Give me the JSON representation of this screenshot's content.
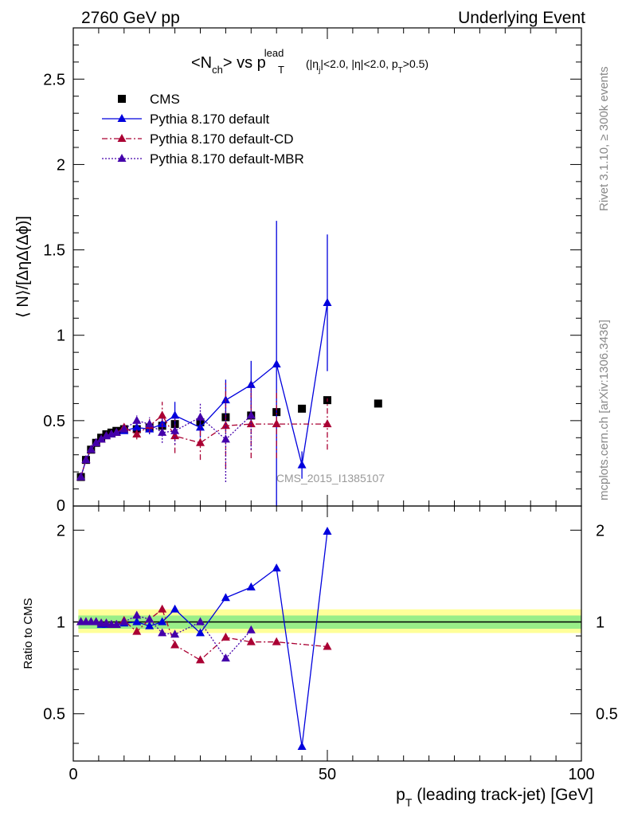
{
  "header": {
    "left": "2760 GeV pp",
    "right": "Underlying Event"
  },
  "side_labels": {
    "rivet": "Rivet 3.1.10, ≥ 300k events",
    "mcplots": "mcplots.cern.ch [arXiv:1306.3436]"
  },
  "watermark": "CMS_2015_I1385107",
  "title": {
    "main": "<N",
    "sub1": "ch",
    "mid": "> vs p",
    "sup": "lead",
    "sub2": "T",
    "cuts1": " (|η",
    "cuts1sub": "j",
    "cuts2": "|<2.0, |η|<2.0, p",
    "cuts2sub": "T",
    "cuts3": ">0.5)"
  },
  "axes": {
    "ylabel_top": "⟨ N⟩/[ΔηΔ(Δϕ)]",
    "ylabel_bottom": "Ratio to CMS",
    "xlabel_main": "p",
    "xlabel_sub": "T",
    "xlabel_rest": " (leading track-jet) [GeV]"
  },
  "legend": [
    {
      "name": "CMS",
      "color": "#000000",
      "marker": "square",
      "line": "none"
    },
    {
      "name": "Pythia 8.170 default",
      "color": "#0000dd",
      "marker": "triangle",
      "line": "solid"
    },
    {
      "name": "Pythia 8.170 default-CD",
      "color": "#aa0033",
      "marker": "triangle",
      "line": "dashdot"
    },
    {
      "name": "Pythia 8.170 default-MBR",
      "color": "#4400aa",
      "marker": "triangle",
      "line": "dotted"
    }
  ],
  "chart_data": [
    {
      "type": "scatter",
      "panel": "main",
      "xlim": [
        0,
        100
      ],
      "ylim": [
        0,
        2.8
      ],
      "x_ticks": [
        0,
        50,
        100
      ],
      "y_ticks": [
        "0.5",
        "1",
        "1.5",
        "2",
        "2.5"
      ],
      "series": [
        {
          "name": "CMS",
          "x": [
            1.5,
            2.5,
            3.5,
            4.5,
            5.5,
            6.5,
            7.5,
            8.5,
            10,
            12.5,
            15,
            17.5,
            20,
            25,
            30,
            35,
            40,
            45,
            50,
            60
          ],
          "y": [
            0.17,
            0.27,
            0.33,
            0.37,
            0.4,
            0.42,
            0.43,
            0.44,
            0.45,
            0.45,
            0.46,
            0.47,
            0.48,
            0.49,
            0.52,
            0.53,
            0.55,
            0.57,
            0.62,
            0.6
          ]
        },
        {
          "name": "Pythia 8.170 default",
          "x": [
            1.5,
            2.5,
            3.5,
            4.5,
            5.5,
            6.5,
            7.5,
            8.5,
            10,
            12.5,
            15,
            17.5,
            20,
            25,
            30,
            35,
            40,
            45,
            50,
            60
          ],
          "y": [
            0.17,
            0.27,
            0.33,
            0.37,
            0.39,
            0.41,
            0.42,
            0.43,
            0.44,
            0.46,
            0.45,
            0.48,
            0.53,
            0.46,
            0.62,
            0.71,
            0.83,
            0.24,
            1.19,
            null
          ],
          "err": [
            0.005,
            0.005,
            0.005,
            0.005,
            0.005,
            0.005,
            0.005,
            0.01,
            0.01,
            0.02,
            0.03,
            0.04,
            0.08,
            0.06,
            0.12,
            0.14,
            0.84,
            0.08,
            0.4,
            null
          ]
        },
        {
          "name": "Pythia 8.170 default-CD",
          "x": [
            1.5,
            2.5,
            3.5,
            4.5,
            5.5,
            6.5,
            7.5,
            8.5,
            10,
            12.5,
            15,
            17.5,
            20,
            25,
            30,
            35,
            40,
            45,
            50,
            60
          ],
          "y": [
            0.17,
            0.27,
            0.33,
            0.37,
            0.39,
            0.41,
            0.42,
            0.43,
            0.46,
            0.42,
            0.47,
            0.53,
            0.41,
            0.37,
            0.47,
            0.48,
            0.48,
            null,
            0.48,
            null
          ],
          "err": [
            0.005,
            0.005,
            0.005,
            0.005,
            0.005,
            0.005,
            0.005,
            0.01,
            0.02,
            0.03,
            0.04,
            0.08,
            0.1,
            0.1,
            0.25,
            0.2,
            0.2,
            null,
            0.15,
            null
          ]
        },
        {
          "name": "Pythia 8.170 default-MBR",
          "x": [
            1.5,
            2.5,
            3.5,
            4.5,
            5.5,
            6.5,
            7.5,
            8.5,
            10,
            12.5,
            15,
            17.5,
            20,
            25,
            30,
            35,
            40,
            45,
            50,
            60
          ],
          "y": [
            0.17,
            0.27,
            0.33,
            0.37,
            0.39,
            0.41,
            0.42,
            0.43,
            0.45,
            0.5,
            0.48,
            0.43,
            0.44,
            0.52,
            0.39,
            0.53,
            null,
            null,
            null,
            null
          ],
          "err": [
            0.005,
            0.005,
            0.005,
            0.005,
            0.005,
            0.005,
            0.005,
            0.01,
            0.02,
            0.03,
            0.04,
            0.06,
            0.08,
            0.08,
            0.25,
            0.2,
            null,
            null,
            null,
            null
          ]
        }
      ]
    },
    {
      "type": "scatter",
      "panel": "ratio",
      "xlim": [
        0,
        100
      ],
      "ylim": [
        0.35,
        2.4
      ],
      "y_ticks": [
        "0.5",
        "1",
        "2"
      ],
      "series": [
        {
          "name": "Pythia 8.170 default",
          "x": [
            1.5,
            2.5,
            3.5,
            4.5,
            5.5,
            6.5,
            7.5,
            8.5,
            10,
            12.5,
            15,
            17.5,
            20,
            25,
            30,
            35,
            40,
            45,
            50,
            60
          ],
          "y": [
            1.0,
            1.0,
            1.0,
            1.0,
            0.98,
            0.98,
            0.98,
            0.98,
            0.99,
            1.0,
            0.97,
            1.0,
            1.1,
            0.92,
            1.2,
            1.3,
            1.5,
            0.39,
            1.98,
            null
          ]
        },
        {
          "name": "Pythia 8.170 default-CD",
          "x": [
            1.5,
            2.5,
            3.5,
            4.5,
            5.5,
            6.5,
            7.5,
            8.5,
            10,
            12.5,
            15,
            17.5,
            20,
            25,
            30,
            35,
            40,
            45,
            50,
            60
          ],
          "y": [
            1.0,
            1.0,
            1.0,
            1.0,
            0.99,
            0.99,
            0.98,
            0.98,
            1.01,
            0.93,
            1.02,
            1.1,
            0.84,
            0.75,
            0.89,
            0.86,
            0.86,
            null,
            0.83,
            null
          ]
        },
        {
          "name": "Pythia 8.170 default-MBR",
          "x": [
            1.5,
            2.5,
            3.5,
            4.5,
            5.5,
            6.5,
            7.5,
            8.5,
            10,
            12.5,
            15,
            17.5,
            20,
            25,
            30,
            35,
            40,
            45,
            50,
            60
          ],
          "y": [
            1.0,
            1.0,
            1.0,
            1.0,
            0.99,
            0.99,
            0.98,
            0.98,
            1.0,
            1.05,
            1.02,
            0.92,
            0.91,
            1.0,
            0.76,
            0.94,
            null,
            null,
            null,
            null
          ]
        }
      ]
    }
  ]
}
